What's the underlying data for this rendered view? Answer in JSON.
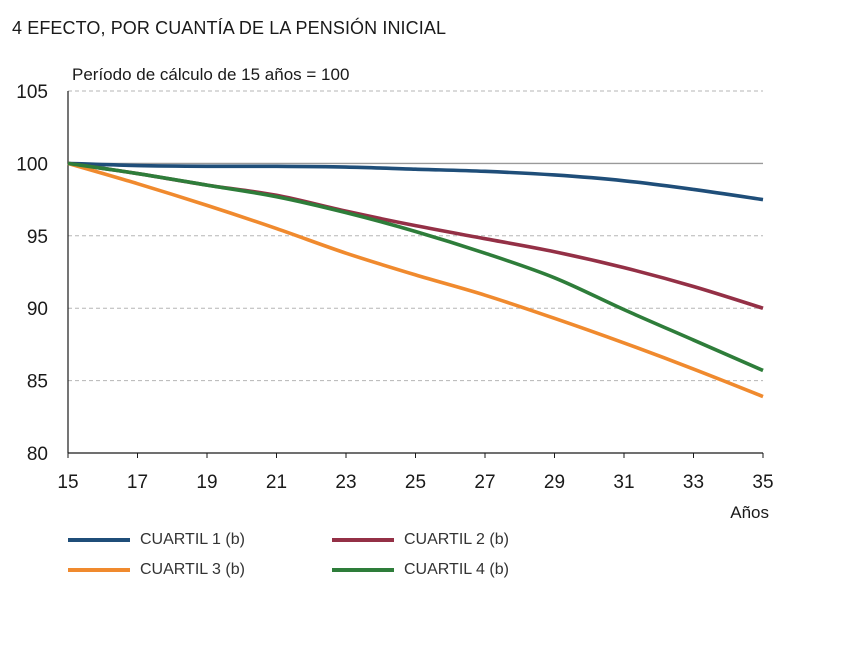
{
  "chart_data": {
    "type": "line",
    "title": "4  EFECTO, POR CUANTÍA DE LA PENSIÓN INICIAL",
    "subtitle": "Período de cálculo de 15 años = 100",
    "xlabel": "Años",
    "ylabel": "",
    "xlim": [
      15,
      35
    ],
    "ylim": [
      80,
      105
    ],
    "xticks": [
      15,
      17,
      19,
      21,
      23,
      25,
      27,
      29,
      31,
      33,
      35
    ],
    "yticks": [
      80,
      85,
      90,
      95,
      100,
      105
    ],
    "grid": "horizontal-dashed",
    "reference_line": 100,
    "legend_position": "bottom",
    "x": [
      15,
      17,
      19,
      21,
      23,
      25,
      27,
      29,
      31,
      33,
      35
    ],
    "series": [
      {
        "name": "CUARTIL 1 (b)",
        "color": "#1f4e79",
        "values": [
          100.0,
          99.85,
          99.8,
          99.8,
          99.75,
          99.6,
          99.45,
          99.2,
          98.8,
          98.2,
          97.5
        ]
      },
      {
        "name": "CUARTIL 2 (b)",
        "color": "#943046",
        "values": [
          100.0,
          99.3,
          98.5,
          97.8,
          96.7,
          95.7,
          94.8,
          93.9,
          92.8,
          91.5,
          90.0
        ]
      },
      {
        "name": "CUARTIL 3 (b)",
        "color": "#f08a2e",
        "values": [
          100.0,
          98.6,
          97.1,
          95.5,
          93.8,
          92.3,
          90.9,
          89.3,
          87.6,
          85.8,
          83.9
        ]
      },
      {
        "name": "CUARTIL 4 (b)",
        "color": "#2e7d3a",
        "values": [
          100.0,
          99.3,
          98.5,
          97.7,
          96.6,
          95.3,
          93.8,
          92.1,
          89.9,
          87.8,
          85.7
        ]
      }
    ]
  }
}
